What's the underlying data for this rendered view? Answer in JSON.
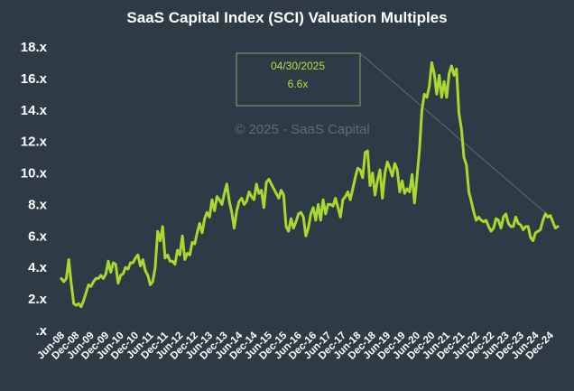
{
  "chart_data": {
    "type": "line",
    "title": "SaaS Capital Index (SCI) Valuation Multiples",
    "watermark": "© 2025 - SaaS Capital",
    "ylim": [
      0,
      18
    ],
    "ytick_values": [
      0,
      2,
      4,
      6,
      8,
      10,
      12,
      14,
      16,
      18
    ],
    "ytick_labels": [
      ".x",
      "2.x",
      "4.x",
      "6.x",
      "8.x",
      "10.x",
      "12.x",
      "14.x",
      "16.x",
      "18.x"
    ],
    "xtick_labels": [
      "Jun-08",
      "Dec-08",
      "Jun-09",
      "Dec-09",
      "Jun-10",
      "Dec-10",
      "Jun-11",
      "Dec-11",
      "Jun-12",
      "Dec-12",
      "Jun-13",
      "Dec-13",
      "Jun-14",
      "Dec-14",
      "Jun-15",
      "Dec-15",
      "Jun-16",
      "Dec-16",
      "Jun-17",
      "Dec-17",
      "Jun-18",
      "Dec-18",
      "Jun-19",
      "Dec-19",
      "Jun-20",
      "Dec-20",
      "Jun-21",
      "Dec-21",
      "Jun-22",
      "Dec-22",
      "Jun-23",
      "Dec-23",
      "Jun-24",
      "Dec-24"
    ],
    "start_month": "2008-06",
    "line_color": "#a8d92f",
    "annotation": {
      "date": "04/30/2025",
      "value_label": "6.6x",
      "value": 6.6,
      "color": "#b5e03f"
    },
    "series": [
      {
        "name": "SCI",
        "values": [
          3.3,
          3.1,
          3.3,
          4.5,
          3.0,
          1.7,
          1.6,
          1.7,
          1.5,
          1.9,
          2.4,
          2.9,
          2.8,
          3.1,
          3.3,
          3.3,
          3.5,
          3.3,
          3.6,
          4.4,
          3.7,
          4.3,
          4.2,
          3.0,
          3.5,
          3.6,
          4.0,
          3.9,
          4.3,
          4.3,
          4.6,
          4.8,
          4.1,
          4.5,
          3.8,
          3.5,
          2.9,
          3.1,
          4.0,
          6.3,
          5.7,
          6.6,
          4.6,
          4.8,
          4.4,
          4.4,
          4.2,
          5.1,
          4.8,
          6.0,
          4.5,
          4.9,
          4.8,
          5.6,
          5.5,
          6.2,
          6.8,
          6.2,
          7.1,
          7.5,
          7.2,
          8.3,
          7.6,
          8.5,
          8.3,
          8.0,
          8.7,
          9.3,
          8.2,
          7.5,
          6.5,
          7.6,
          8.2,
          8.4,
          8.0,
          8.2,
          8.8,
          8.5,
          8.3,
          9.3,
          8.7,
          8.9,
          7.8,
          9.4,
          9.6,
          9.3,
          9.0,
          8.7,
          8.4,
          8.9,
          8.6,
          6.6,
          6.3,
          7.1,
          6.5,
          6.9,
          7.4,
          7.5,
          7.2,
          6.0,
          6.5,
          7.4,
          7.8,
          7.0,
          8.0,
          7.0,
          8.3,
          7.4,
          8.0,
          8.0,
          7.9,
          8.4,
          7.8,
          7.2,
          8.3,
          8.5,
          8.8,
          8.3,
          9.0,
          9.7,
          10.3,
          10.2,
          9.7,
          11.3,
          11.4,
          9.2,
          10.0,
          8.6,
          9.5,
          10.2,
          8.4,
          10.0,
          10.7,
          10.3,
          9.8,
          10.6,
          10.2,
          8.8,
          9.5,
          8.7,
          9.0,
          8.8,
          9.9,
          8.1,
          9.7,
          11.5,
          14.0,
          15.0,
          14.8,
          15.5,
          17.0,
          16.3,
          15.0,
          16.2,
          14.8,
          15.8,
          14.8,
          16.3,
          16.8,
          16.2,
          16.6,
          13.8,
          12.8,
          11.0,
          10.5,
          8.8,
          8.2,
          7.5,
          7.0,
          7.2,
          7.0,
          6.9,
          7.0,
          6.6,
          6.3,
          6.5,
          7.1,
          7.0,
          6.5,
          7.2,
          7.4,
          6.8,
          6.6,
          6.6,
          7.2,
          6.8,
          6.7,
          6.4,
          6.6,
          6.6,
          5.9,
          5.7,
          6.2,
          6.3,
          6.4,
          7.0,
          7.4,
          7.2,
          7.3,
          6.9,
          6.5,
          6.6
        ]
      }
    ]
  }
}
